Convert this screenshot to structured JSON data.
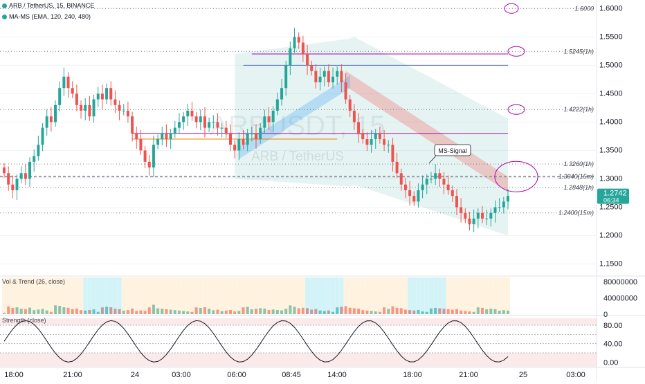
{
  "header": {
    "symbol_line": "ARB / TetherUS, 15, BINANCE",
    "indicator_line": "MA-MS (EMA, 120, 240, 480)"
  },
  "watermark": {
    "ticker": "ARBUSDT, 15",
    "pair": "ARB / TetherUS"
  },
  "price_axis": {
    "ticks": [
      "1.6000",
      "1.5500",
      "1.5000",
      "1.4500",
      "1.4000",
      "1.3500",
      "1.3000",
      "1.2500",
      "1.2000",
      "1.1500"
    ],
    "current_price": "1.2742",
    "countdown": "06:34",
    "current_color": "#26a69a"
  },
  "levels": [
    {
      "label": "1.6000",
      "price": 1.6
    },
    {
      "label": "1.5245(1h)",
      "price": 1.5245
    },
    {
      "label": "1.4222(1h)",
      "price": 1.4222
    },
    {
      "label": "1.3260(1h)",
      "price": 1.326
    },
    {
      "label": "1.3040(15m)",
      "price": 1.304
    },
    {
      "label": "1.2848(1h)",
      "price": 1.2848
    },
    {
      "label": "1.2400(15m)",
      "price": 1.24
    }
  ],
  "annotation": {
    "text": "MS-Signal"
  },
  "vol_panel": {
    "title": "Vol & Trend (26, close)",
    "ticks": [
      "80000000",
      "40000000",
      "0"
    ]
  },
  "strength_panel": {
    "title": "Strength (close)",
    "ticks": [
      "80.00",
      "40.00",
      "0.00"
    ]
  },
  "time_axis": {
    "ticks": [
      "18:00",
      "21:00",
      "24",
      "03:00",
      "06:00",
      "08:45",
      "14:00",
      "18:00",
      "21:00",
      "25",
      "03:00"
    ]
  },
  "chart_data": {
    "type": "candlestick",
    "title": "ARB / TetherUS, 15, BINANCE",
    "y_range": [
      1.13,
      1.615
    ],
    "series": [
      {
        "name": "ARB / TetherUS",
        "values": [
          1.31,
          1.29,
          1.28,
          1.3,
          1.31,
          1.3,
          1.33,
          1.34,
          1.36,
          1.39,
          1.41,
          1.4,
          1.43,
          1.46,
          1.48,
          1.46,
          1.45,
          1.43,
          1.42,
          1.43,
          1.41,
          1.44,
          1.45,
          1.44,
          1.46,
          1.44,
          1.43,
          1.42,
          1.42,
          1.41,
          1.38,
          1.37,
          1.35,
          1.33,
          1.32,
          1.36,
          1.37,
          1.38,
          1.37,
          1.38,
          1.39,
          1.4,
          1.41,
          1.42,
          1.41,
          1.4,
          1.41,
          1.39,
          1.4,
          1.4,
          1.39,
          1.39,
          1.38,
          1.36,
          1.35,
          1.37,
          1.36,
          1.38,
          1.38,
          1.37,
          1.39,
          1.41,
          1.4,
          1.42,
          1.44,
          1.46,
          1.5,
          1.53,
          1.55,
          1.54,
          1.52,
          1.5,
          1.49,
          1.47,
          1.48,
          1.49,
          1.47,
          1.48,
          1.49,
          1.47,
          1.44,
          1.42,
          1.4,
          1.38,
          1.37,
          1.36,
          1.37,
          1.38,
          1.37,
          1.36,
          1.36,
          1.33,
          1.31,
          1.29,
          1.28,
          1.27,
          1.26,
          1.28,
          1.29,
          1.3,
          1.3,
          1.31,
          1.3,
          1.29,
          1.28,
          1.27,
          1.25,
          1.24,
          1.23,
          1.22,
          1.23,
          1.24,
          1.23,
          1.23,
          1.24,
          1.25,
          1.25,
          1.26,
          1.27
        ]
      }
    ],
    "indicators": [
      {
        "name": "Vol & Trend (26, close)",
        "y_range": [
          0,
          90000000
        ]
      },
      {
        "name": "Strength (close)",
        "y_range": [
          -10,
          95
        ]
      }
    ]
  }
}
